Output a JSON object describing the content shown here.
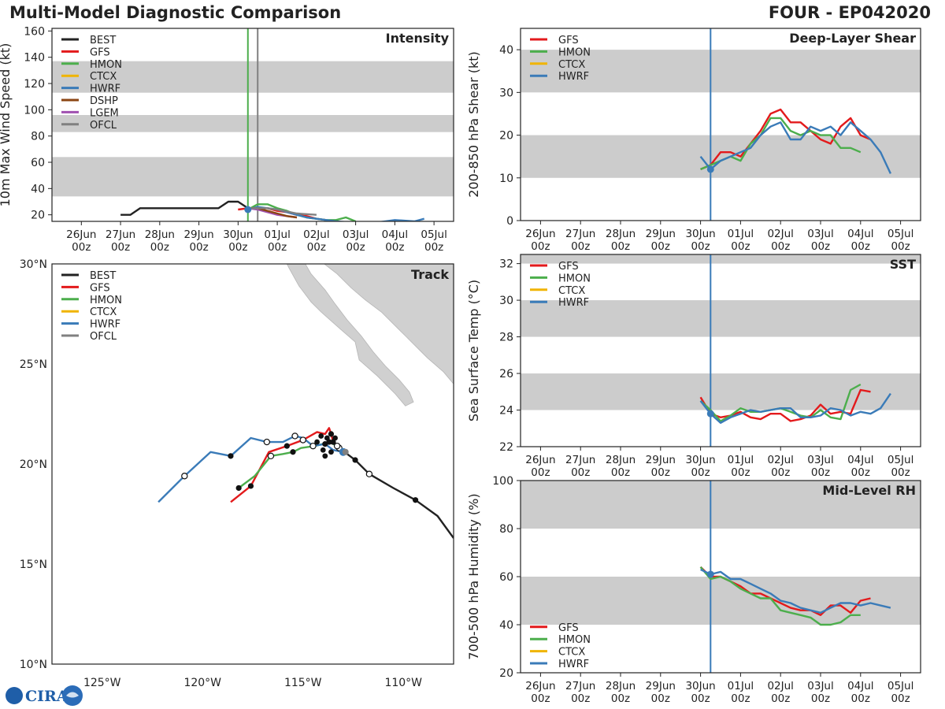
{
  "header": {
    "title": "Multi-Model Diagnostic Comparison",
    "storm_id": "FOUR - EP042020"
  },
  "logo_text": "CIRA",
  "colors": {
    "BEST": "#222222",
    "GFS": "#e31a1c",
    "HMON": "#4cae4c",
    "CTCX": "#f0b400",
    "HWRF": "#3a7bb8",
    "DSHP": "#8b4513",
    "LGEM": "#a050b0",
    "OFCL": "#808080",
    "band": "#cccccc",
    "land": "#d0d0d0"
  },
  "time_axis": {
    "tick_days": [
      0,
      1,
      2,
      3,
      4,
      5,
      6,
      7,
      8,
      9
    ],
    "tick_labels": [
      "26Jun",
      "27Jun",
      "28Jun",
      "29Jun",
      "30Jun",
      "01Jul",
      "02Jul",
      "03Jul",
      "04Jul",
      "05Jul"
    ],
    "tick_sublabel": "00z",
    "init_day": 4.25,
    "comment": "time values are days since 26Jun 00z"
  },
  "chart_data": [
    {
      "id": "intensity",
      "type": "line",
      "title": "Intensity",
      "ylabel": "10m Max Wind Speed (kt)",
      "xlim": [
        -0.75,
        9.5
      ],
      "ylim": [
        15,
        162
      ],
      "yticks": [
        20,
        40,
        60,
        80,
        100,
        120,
        140,
        160
      ],
      "bands": [
        [
          34,
          64
        ],
        [
          83,
          96
        ],
        [
          113,
          137
        ]
      ],
      "vlines": [
        {
          "x": 4.25,
          "color": "HMON"
        },
        {
          "x": 4.5,
          "color": "OFCL"
        }
      ],
      "legend": [
        "BEST",
        "GFS",
        "HMON",
        "CTCX",
        "HWRF",
        "DSHP",
        "LGEM",
        "OFCL"
      ],
      "series": [
        {
          "name": "BEST",
          "x": [
            1,
            1.25,
            1.5,
            1.75,
            2,
            2.25,
            2.5,
            2.75,
            3,
            3.25,
            3.5,
            3.75,
            4,
            4.25
          ],
          "y": [
            20,
            20,
            25,
            25,
            25,
            25,
            25,
            25,
            25,
            25,
            25,
            30,
            30,
            25
          ]
        },
        {
          "name": "GFS",
          "x": [
            4,
            4.25,
            4.5,
            4.75,
            5,
            5.25,
            5.5,
            5.75,
            6,
            6.25
          ],
          "y": [
            24,
            25,
            25,
            25,
            23,
            22,
            20,
            19,
            17,
            16
          ]
        },
        {
          "name": "HMON",
          "x": [
            4.25,
            4.5,
            4.75,
            5,
            5.25,
            5.5,
            5.75,
            6,
            6.25,
            6.5,
            6.75,
            7
          ],
          "y": [
            24,
            28,
            28,
            25,
            23,
            20,
            18,
            17,
            16,
            16,
            18,
            15
          ]
        },
        {
          "name": "HWRF",
          "x": [
            4.25,
            4.5,
            4.75,
            5,
            5.25,
            5.5,
            5.75,
            6,
            6.25,
            6.5,
            7,
            7.5,
            8,
            8.5,
            8.75
          ],
          "y": [
            24,
            26,
            25,
            24,
            22,
            20,
            18,
            17,
            16,
            15,
            14,
            14,
            16,
            15,
            17
          ]
        },
        {
          "name": "LGEM",
          "x": [
            4.25,
            4.5,
            4.75,
            5,
            5.25,
            5.5
          ],
          "y": [
            25,
            24,
            22,
            20,
            19,
            18
          ]
        },
        {
          "name": "DSHP",
          "x": [
            4.25,
            4.5,
            4.75,
            5,
            5.25,
            5.5
          ],
          "y": [
            25,
            25,
            23,
            21,
            19,
            18
          ]
        },
        {
          "name": "OFCL",
          "x": [
            4.25,
            4.5,
            4.75,
            5,
            5.5,
            6
          ],
          "y": [
            25,
            25,
            25,
            24,
            21,
            20
          ]
        }
      ],
      "init_marker": {
        "x": 4.25,
        "y": 24
      }
    },
    {
      "id": "shear",
      "type": "line",
      "title": "Deep-Layer Shear",
      "ylabel": "200-850 hPa Shear (kt)",
      "xlim": [
        -0.5,
        9.5
      ],
      "ylim": [
        0,
        45
      ],
      "yticks": [
        0,
        10,
        20,
        30,
        40
      ],
      "bands": [
        [
          10,
          20
        ],
        [
          30,
          40
        ]
      ],
      "vlines": [
        {
          "x": 4.25,
          "color": "HWRF"
        }
      ],
      "legend": [
        "GFS",
        "HMON",
        "CTCX",
        "HWRF"
      ],
      "series": [
        {
          "name": "GFS",
          "x": [
            4,
            4.25,
            4.5,
            4.75,
            5,
            5.25,
            5.5,
            5.75,
            6,
            6.25,
            6.5,
            6.75,
            7,
            7.25,
            7.5,
            7.75,
            8,
            8.25
          ],
          "y": [
            12,
            13,
            16,
            16,
            15,
            18,
            21,
            25,
            26,
            23,
            23,
            21,
            19,
            18,
            22,
            24,
            20,
            19
          ]
        },
        {
          "name": "HMON",
          "x": [
            4,
            4.25,
            4.5,
            4.75,
            5,
            5.25,
            5.5,
            5.75,
            6,
            6.25,
            6.5,
            6.75,
            7,
            7.25,
            7.5,
            7.75,
            8
          ],
          "y": [
            12,
            13,
            14,
            15,
            14,
            18,
            20,
            24,
            24,
            21,
            20,
            21,
            20,
            20,
            17,
            17,
            16
          ]
        },
        {
          "name": "HWRF",
          "x": [
            4,
            4.25,
            4.5,
            4.75,
            5,
            5.25,
            5.5,
            5.75,
            6,
            6.25,
            6.5,
            6.75,
            7,
            7.25,
            7.5,
            7.75,
            8,
            8.25,
            8.5,
            8.75
          ],
          "y": [
            15,
            12,
            14,
            15,
            16,
            17,
            20,
            22,
            23,
            19,
            19,
            22,
            21,
            22,
            20,
            23,
            21,
            19,
            16,
            11
          ]
        }
      ],
      "init_marker": {
        "x": 4.25,
        "y": 12
      }
    },
    {
      "id": "sst",
      "type": "line",
      "title": "SST",
      "ylabel": "Sea Surface Temp (°C)",
      "xlim": [
        -0.5,
        9.5
      ],
      "ylim": [
        22,
        32.5
      ],
      "yticks": [
        22,
        24,
        26,
        28,
        30,
        32
      ],
      "bands": [
        [
          24,
          26
        ],
        [
          28,
          30
        ],
        [
          32,
          32.5
        ]
      ],
      "vlines": [
        {
          "x": 4.25,
          "color": "HWRF"
        }
      ],
      "legend": [
        "GFS",
        "HMON",
        "CTCX",
        "HWRF"
      ],
      "series": [
        {
          "name": "GFS",
          "x": [
            4,
            4.25,
            4.5,
            4.75,
            5,
            5.25,
            5.5,
            5.75,
            6,
            6.25,
            6.5,
            6.75,
            7,
            7.25,
            7.5,
            7.75,
            8,
            8.25
          ],
          "y": [
            24.7,
            23.8,
            23.6,
            23.7,
            23.9,
            23.6,
            23.5,
            23.8,
            23.8,
            23.4,
            23.5,
            23.7,
            24.3,
            23.8,
            23.9,
            23.8,
            25.1,
            25.0
          ]
        },
        {
          "name": "HMON",
          "x": [
            4,
            4.25,
            4.5,
            4.75,
            5,
            5.25,
            5.5,
            5.75,
            6,
            6.25,
            6.5,
            6.75,
            7,
            7.25,
            7.5,
            7.75,
            8
          ],
          "y": [
            24.5,
            24.0,
            23.4,
            23.7,
            24.1,
            23.9,
            23.9,
            24.0,
            24.1,
            23.9,
            23.7,
            23.6,
            24.0,
            23.6,
            23.5,
            25.1,
            25.4
          ]
        },
        {
          "name": "HWRF",
          "x": [
            4,
            4.25,
            4.5,
            4.75,
            5,
            5.25,
            5.5,
            5.75,
            6,
            6.25,
            6.5,
            6.75,
            7,
            7.25,
            7.5,
            7.75,
            8,
            8.25,
            8.5,
            8.75
          ],
          "y": [
            24.5,
            23.8,
            23.3,
            23.6,
            23.8,
            24.0,
            23.9,
            24.0,
            24.1,
            24.1,
            23.6,
            23.6,
            23.7,
            24.1,
            24.0,
            23.7,
            23.9,
            23.8,
            24.1,
            24.9
          ]
        }
      ],
      "init_marker": {
        "x": 4.25,
        "y": 23.8
      }
    },
    {
      "id": "rh",
      "type": "line",
      "title": "Mid-Level RH",
      "ylabel": "700-500 hPa Humidity (%)",
      "xlim": [
        -0.5,
        9.5
      ],
      "ylim": [
        20,
        100
      ],
      "yticks": [
        20,
        40,
        60,
        80,
        100
      ],
      "bands": [
        [
          40,
          60
        ],
        [
          80,
          100
        ]
      ],
      "vlines": [
        {
          "x": 4.25,
          "color": "HWRF"
        }
      ],
      "legend": [
        "GFS",
        "HMON",
        "CTCX",
        "HWRF"
      ],
      "series": [
        {
          "name": "GFS",
          "x": [
            4,
            4.25,
            4.5,
            4.75,
            5,
            5.25,
            5.5,
            5.75,
            6,
            6.25,
            6.5,
            6.75,
            7,
            7.25,
            7.5,
            7.75,
            8,
            8.25
          ],
          "y": [
            64,
            60,
            60,
            58,
            56,
            53,
            53,
            51,
            49,
            47,
            46,
            46,
            44,
            48,
            48,
            45,
            50,
            51
          ]
        },
        {
          "name": "HMON",
          "x": [
            4,
            4.25,
            4.5,
            4.75,
            5,
            5.25,
            5.5,
            5.75,
            6,
            6.25,
            6.5,
            6.75,
            7,
            7.25,
            7.5,
            7.75,
            8
          ],
          "y": [
            64,
            59,
            60,
            58,
            55,
            53,
            51,
            51,
            46,
            45,
            44,
            43,
            40,
            40,
            41,
            44,
            44
          ]
        },
        {
          "name": "HWRF",
          "x": [
            4,
            4.25,
            4.5,
            4.75,
            5,
            5.25,
            5.5,
            5.75,
            6,
            6.25,
            6.5,
            6.75,
            7,
            7.25,
            7.5,
            7.75,
            8,
            8.25,
            8.5,
            8.75
          ],
          "y": [
            63,
            61,
            62,
            59,
            59,
            57,
            55,
            53,
            50,
            49,
            47,
            46,
            45,
            47,
            49,
            49,
            48,
            49,
            48,
            47
          ]
        }
      ],
      "init_marker": {
        "x": 4.25,
        "y": 61
      }
    },
    {
      "id": "track",
      "type": "scatter",
      "title": "Track",
      "xlim": [
        -127.5,
        -107.5
      ],
      "ylim": [
        10,
        30
      ],
      "xticks": [
        -125,
        -120,
        -115,
        -110
      ],
      "xtick_labels": [
        "125°W",
        "120°W",
        "115°W",
        "110°W"
      ],
      "yticks": [
        10,
        15,
        20,
        25,
        30
      ],
      "ytick_labels": [
        "10°N",
        "15°N",
        "20°N",
        "25°N",
        "30°N"
      ],
      "legend": [
        "BEST",
        "GFS",
        "HMON",
        "CTCX",
        "HWRF",
        "OFCL"
      ],
      "series": [
        {
          "name": "BEST",
          "lon": [
            -107.5,
            -108.3,
            -109.4,
            -110.5,
            -111.7,
            -112.4,
            -112.8,
            -113.0
          ],
          "lat": [
            16.3,
            17.4,
            18.2,
            18.8,
            19.5,
            20.2,
            20.5,
            20.6
          ],
          "dots": [
            [
              -109.4,
              18.2
            ],
            [
              -111.7,
              19.5
            ],
            [
              -112.4,
              20.2
            ]
          ],
          "open": [
            [
              -111.7,
              19.5
            ]
          ]
        },
        {
          "name": "GFS",
          "lon": [
            -113.0,
            -113.2,
            -113.5,
            -113.6,
            -113.7,
            -113.9,
            -114.3,
            -115.0,
            -115.8,
            -116.7,
            -117.6,
            -118.6
          ],
          "lat": [
            20.6,
            20.8,
            21.1,
            21.5,
            21.8,
            21.5,
            21.6,
            21.2,
            20.9,
            20.6,
            18.9,
            18.1
          ],
          "dots": [
            [
              -113.5,
              21.1
            ],
            [
              -113.6,
              21.5
            ],
            [
              -115.8,
              20.9
            ],
            [
              -117.6,
              18.9
            ]
          ],
          "open": [
            [
              -113.2,
              20.8
            ],
            [
              -115.0,
              21.2
            ]
          ]
        },
        {
          "name": "HMON",
          "lon": [
            -113.0,
            -113.3,
            -113.7,
            -114.0,
            -114.4,
            -115.1,
            -115.5,
            -116.0,
            -116.6,
            -117.4,
            -118.2
          ],
          "lat": [
            20.6,
            20.9,
            21.1,
            21.0,
            20.9,
            20.8,
            20.6,
            20.5,
            20.4,
            19.4,
            18.8
          ],
          "dots": [
            [
              -113.7,
              21.1
            ],
            [
              -115.5,
              20.6
            ],
            [
              -118.2,
              18.8
            ]
          ],
          "open": [
            [
              -113.3,
              20.9
            ],
            [
              -116.6,
              20.4
            ]
          ]
        },
        {
          "name": "HWRF",
          "lon": [
            -113.0,
            -113.5,
            -113.9,
            -114.5,
            -115.0,
            -115.4,
            -116.0,
            -116.8,
            -117.6,
            -118.6,
            -119.6,
            -120.9,
            -122.2
          ],
          "lat": [
            20.6,
            20.7,
            21.0,
            20.9,
            21.3,
            21.4,
            21.1,
            21.1,
            21.3,
            20.4,
            20.6,
            19.4,
            18.1
          ],
          "dots": [
            [
              -113.9,
              21.0
            ],
            [
              -118.6,
              20.4
            ]
          ],
          "open": [
            [
              -114.5,
              20.9
            ],
            [
              -115.4,
              21.4
            ],
            [
              -116.8,
              21.1
            ],
            [
              -120.9,
              19.4
            ]
          ]
        },
        {
          "name": "OFCL",
          "lon": [
            -113.0,
            -113.1,
            -113.2
          ],
          "lat": [
            20.6,
            20.7,
            20.6
          ],
          "dots": [],
          "open": []
        }
      ],
      "cluster_dots": [
        [
          -113.8,
          21.3
        ],
        [
          -114.0,
          20.7
        ],
        [
          -113.6,
          20.6
        ],
        [
          -114.1,
          21.4
        ],
        [
          -113.9,
          20.4
        ],
        [
          -114.3,
          21.1
        ],
        [
          -113.4,
          21.3
        ]
      ],
      "init_marker": {
        "lon": -113.0,
        "lat": 20.6
      }
    }
  ]
}
